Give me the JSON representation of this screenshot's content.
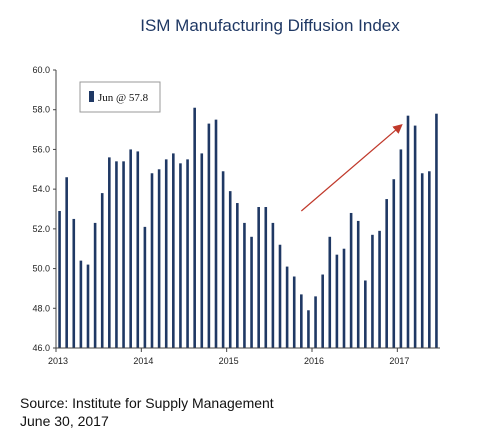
{
  "chart_data": {
    "type": "bar",
    "title": "ISM Manufacturing Diffusion Index",
    "xlabel": "",
    "ylabel": "",
    "ylim": [
      46.0,
      60.0
    ],
    "yticks": [
      "46.0",
      "48.0",
      "50.0",
      "52.0",
      "54.0",
      "56.0",
      "58.0",
      "60.0"
    ],
    "year_labels": [
      {
        "label": "2013",
        "index": 0
      },
      {
        "label": "2014",
        "index": 12
      },
      {
        "label": "2015",
        "index": 24
      },
      {
        "label": "2016",
        "index": 36
      },
      {
        "label": "2017",
        "index": 48
      }
    ],
    "legend": {
      "text": "Jun @ 57.8",
      "placement": "top-left"
    },
    "bar_color": "#1f3864",
    "arrow_color": "#c0392b",
    "series": [
      {
        "values": [
          52.9,
          54.6,
          52.5,
          50.4,
          50.2,
          52.3,
          53.8,
          55.6,
          55.4,
          55.4,
          56.0,
          55.9,
          52.1,
          54.8,
          55.0,
          55.5,
          55.8,
          55.3,
          55.5,
          58.1,
          55.8,
          57.3,
          57.5,
          54.9,
          53.9,
          53.3,
          52.3,
          51.6,
          53.1,
          53.1,
          52.3,
          51.2,
          50.1,
          49.6,
          48.7,
          47.9,
          48.6,
          49.7,
          51.6,
          50.7,
          51.0,
          52.8,
          52.4,
          49.4,
          51.7,
          51.9,
          53.5,
          54.5,
          56.0,
          57.7,
          57.2,
          54.8,
          54.9,
          57.8
        ]
      }
    ],
    "grid": false
  },
  "source": "Source: Institute for Supply Management",
  "date": "June 30, 2017"
}
